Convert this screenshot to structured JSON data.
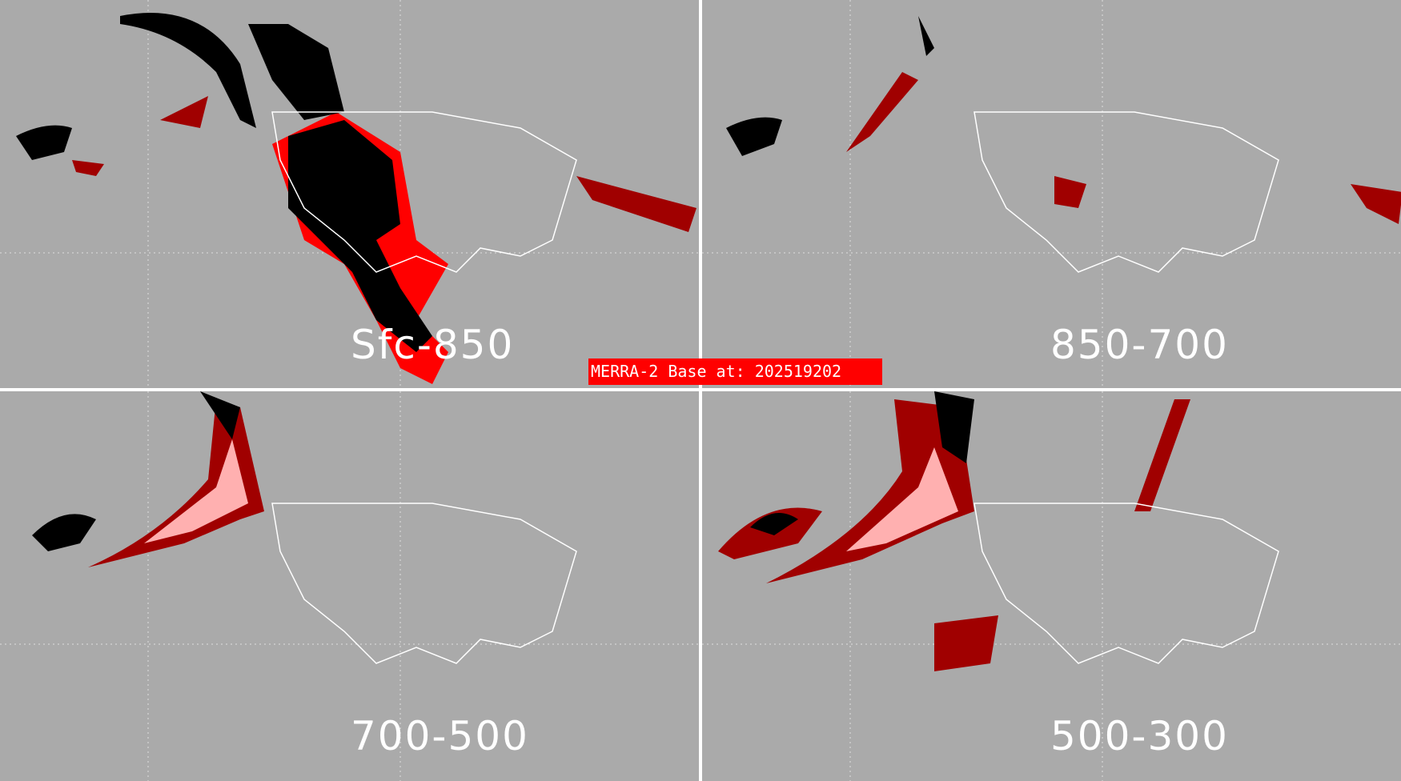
{
  "banner": {
    "text": "MERRA-2 Base at: 202519202",
    "color": "#ff0000"
  },
  "panels": [
    {
      "label": "Sfc-850"
    },
    {
      "label": "850-700"
    },
    {
      "label": "700-500"
    },
    {
      "label": "500-300"
    }
  ],
  "colors": {
    "background": "#aaaaaa",
    "coastline": "#ffffff",
    "black_category": "#000000",
    "red_category": "#ff0000",
    "darkred_category": "#a00000",
    "pink_category": "#ffb0b0"
  }
}
